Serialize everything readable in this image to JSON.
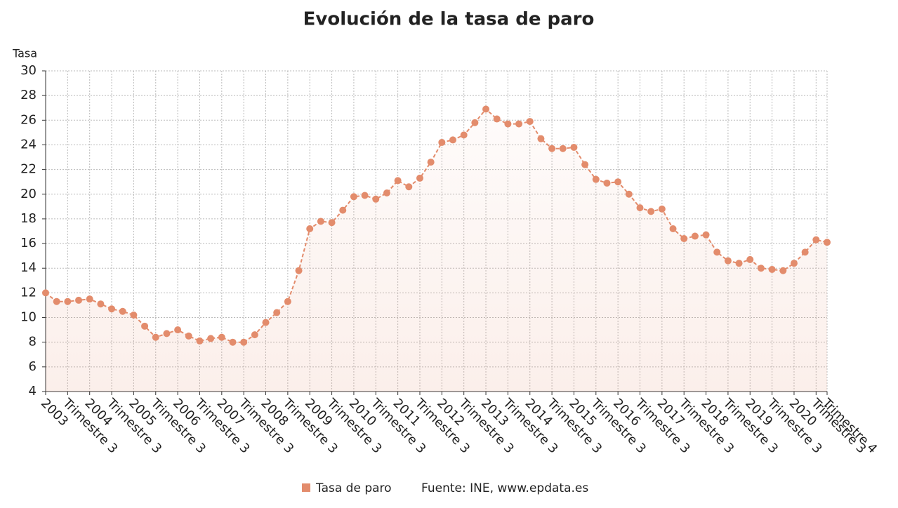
{
  "chart_data": {
    "type": "line",
    "title": "Evolución de la tasa de paro",
    "y_label": "Tasa",
    "categories": [
      "2003",
      null,
      "Trimestre 3",
      null,
      "2004",
      null,
      "Trimestre 3",
      null,
      "2005",
      null,
      "Trimestre 3",
      null,
      "2006",
      null,
      "Trimestre 3",
      null,
      "2007",
      null,
      "Trimestre 3",
      null,
      "2008",
      null,
      "Trimestre 3",
      null,
      "2009",
      null,
      "Trimestre 3",
      null,
      "2010",
      null,
      "Trimestre 3",
      null,
      "2011",
      null,
      "Trimestre 3",
      null,
      "2012",
      null,
      "Trimestre 3",
      null,
      "2013",
      null,
      "Trimestre 3",
      null,
      "2014",
      null,
      "Trimestre 3",
      null,
      "2015",
      null,
      "Trimestre 3",
      null,
      "2016",
      null,
      "Trimestre 3",
      null,
      "2017",
      null,
      "Trimestre 3",
      null,
      "2018",
      null,
      "Trimestre 3",
      null,
      "2019",
      null,
      "Trimestre 3",
      null,
      "2020",
      null,
      "Trimestre 3",
      "Trimestre 4"
    ],
    "series": [
      {
        "name": "Tasa de paro",
        "color": "#e38c6c",
        "values": [
          12.0,
          11.3,
          11.3,
          11.4,
          11.5,
          11.1,
          10.7,
          10.5,
          10.2,
          9.3,
          8.4,
          8.7,
          9.0,
          8.5,
          8.1,
          8.3,
          8.4,
          8.0,
          8.0,
          8.6,
          9.6,
          10.4,
          11.3,
          13.8,
          17.2,
          17.8,
          17.7,
          18.7,
          19.8,
          19.9,
          19.6,
          20.1,
          21.1,
          20.6,
          21.3,
          22.6,
          24.2,
          24.4,
          24.8,
          25.8,
          26.9,
          26.1,
          25.7,
          25.7,
          25.9,
          24.5,
          23.7,
          23.7,
          23.8,
          22.4,
          21.2,
          20.9,
          21.0,
          20.0,
          18.9,
          18.6,
          18.8,
          17.2,
          16.4,
          16.6,
          16.7,
          15.3,
          14.6,
          14.4,
          14.7,
          14.0,
          13.9,
          13.8,
          14.4,
          15.3,
          16.3,
          16.1
        ]
      }
    ],
    "ylim": [
      4,
      30
    ],
    "yticks": [
      4,
      6,
      8,
      10,
      12,
      14,
      16,
      18,
      20,
      22,
      24,
      26,
      28,
      30
    ],
    "grid": true,
    "legend": "bottom",
    "source": "Fuente: INE, www.epdata.es"
  }
}
